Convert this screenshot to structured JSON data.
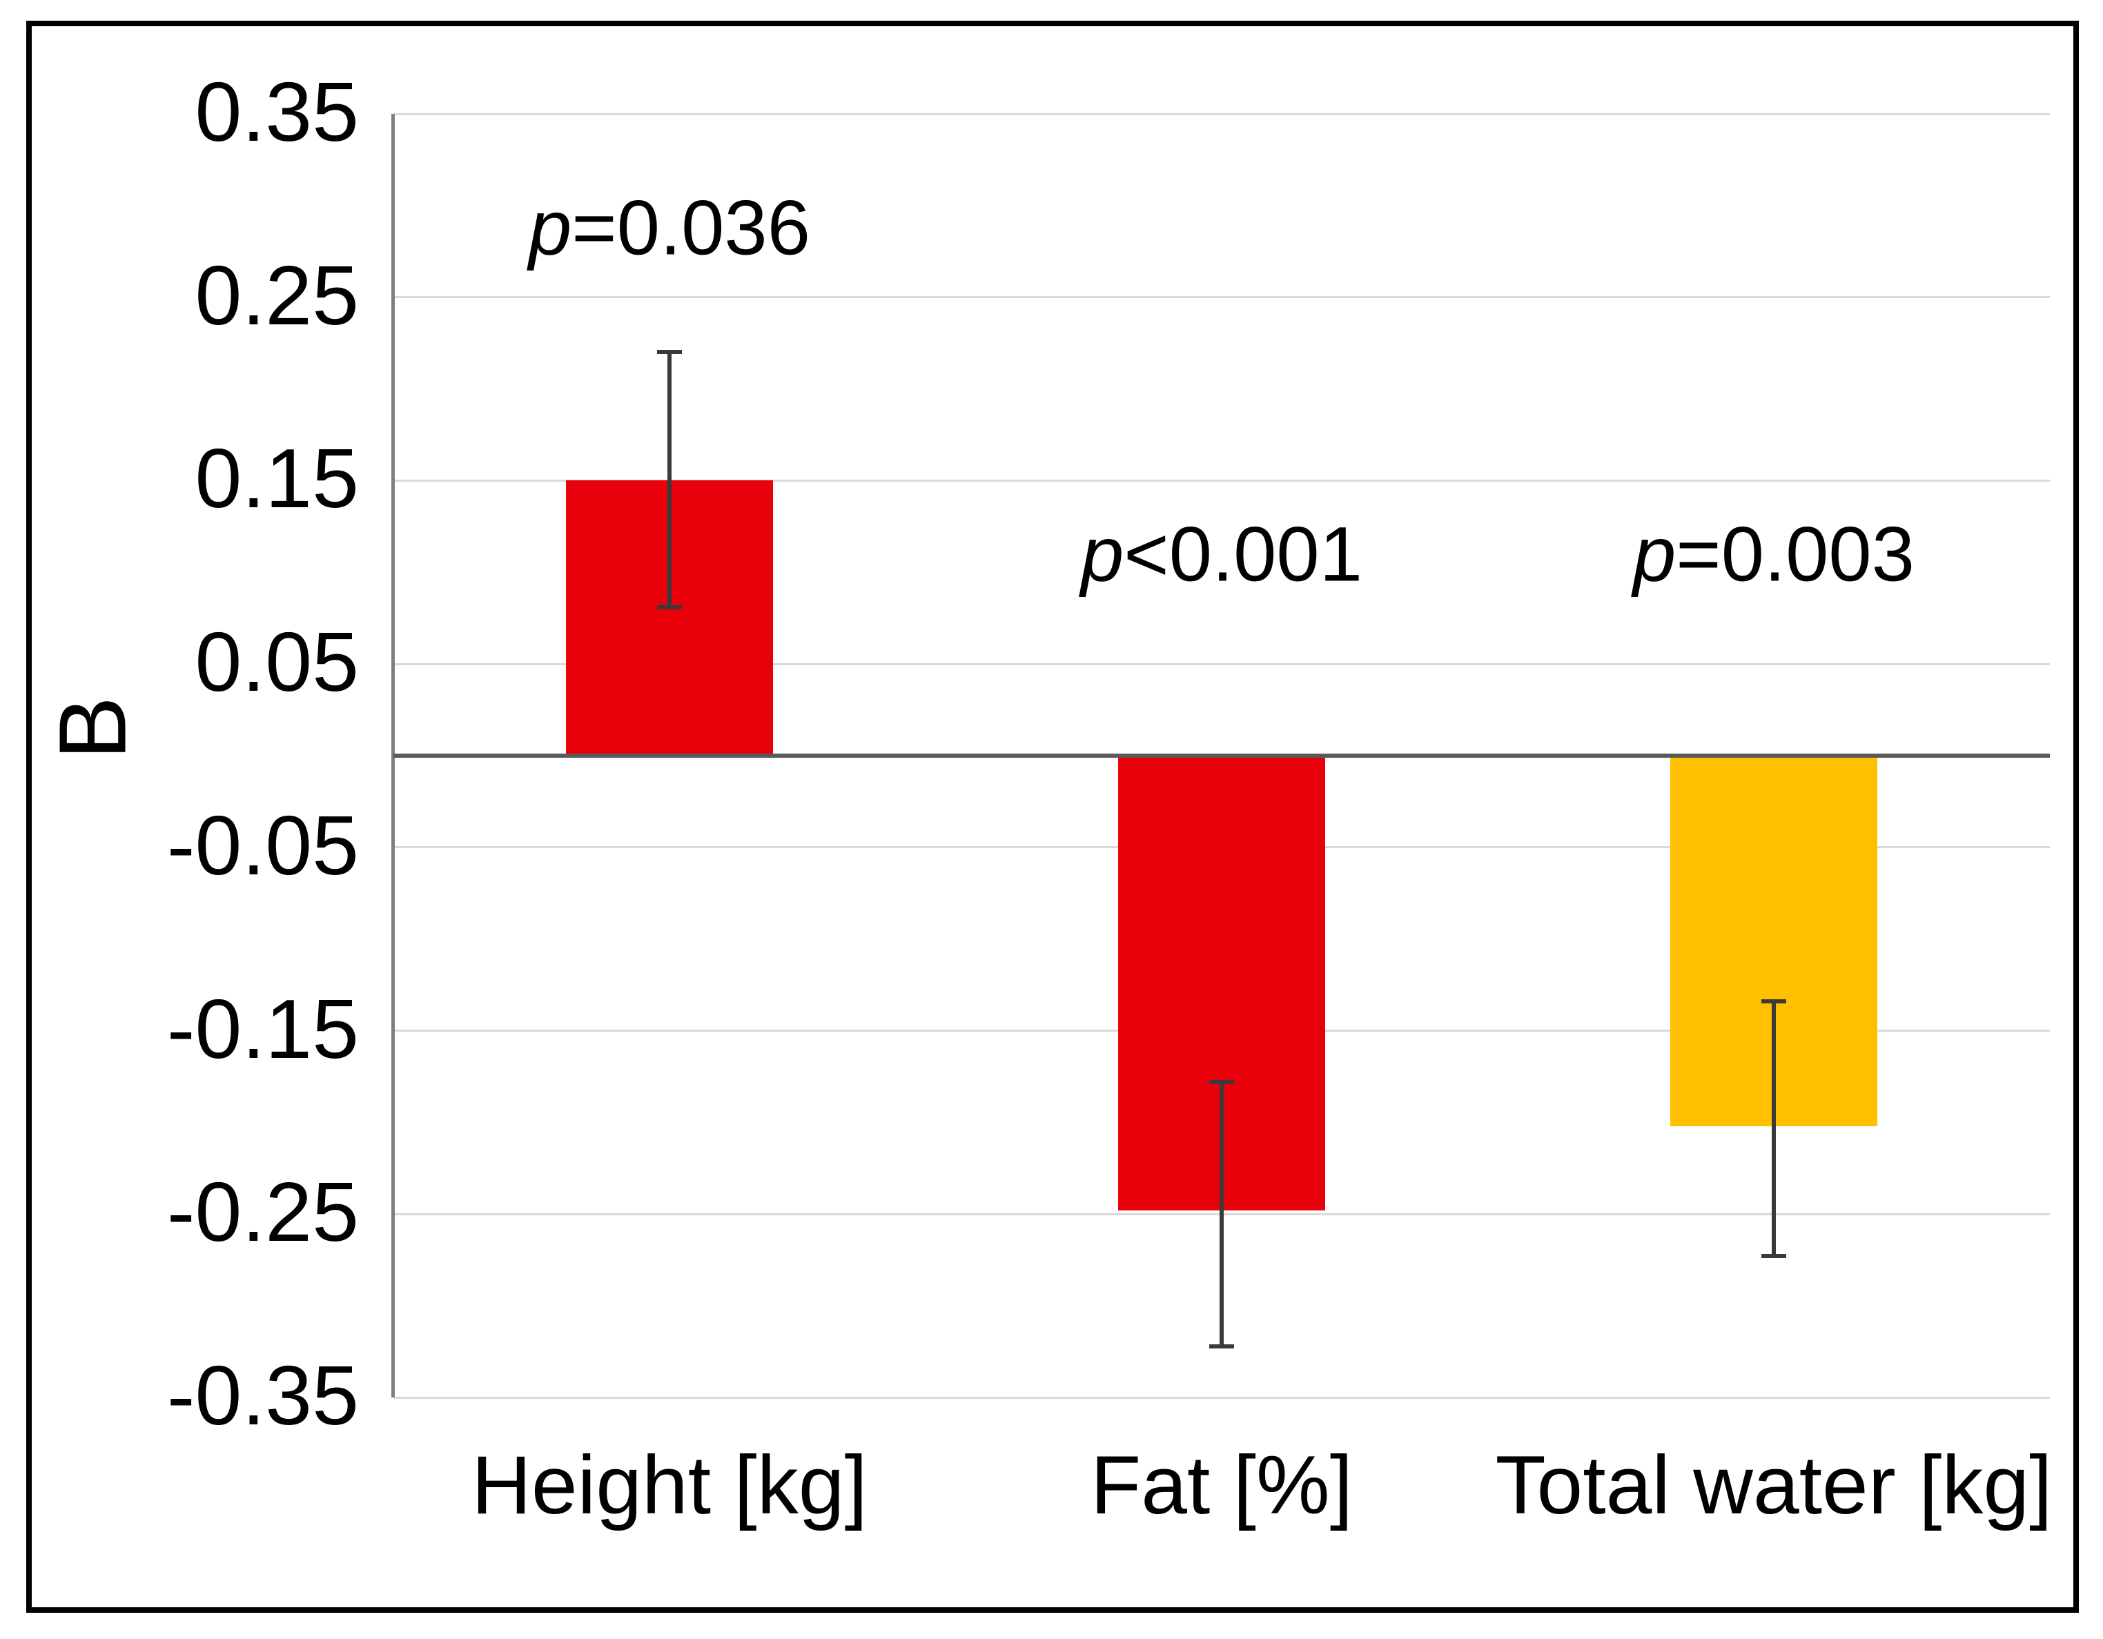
{
  "chart_data": {
    "type": "bar",
    "title": "",
    "xlabel": "",
    "ylabel": "B",
    "ylim": [
      -0.35,
      0.35
    ],
    "ytick_labels": [
      "0.35",
      "0.25",
      "0.15",
      "0.05",
      "-0.05",
      "-0.15",
      "-0.25",
      "-0.35"
    ],
    "grid": "horizontal light gridlines at each y tick; darker horizontal line at 0",
    "legend": "none",
    "categories": [
      "Height [kg]",
      "Fat [%]",
      "Total water [kg]"
    ],
    "series": [
      {
        "name": "B",
        "values": [
          0.15,
          -0.248,
          -0.202
        ],
        "error_bar_high": [
          0.22,
          -0.178,
          -0.134
        ],
        "error_bar_low": [
          0.081,
          -0.322,
          -0.273
        ],
        "bar_colors": [
          "#e8000b",
          "#e8000b",
          "#ffc000"
        ]
      }
    ],
    "annotations": [
      {
        "text": "p=0.036",
        "category_index": 0,
        "y": 0.288
      },
      {
        "text": "p<0.001",
        "category_index": 1,
        "y": 0.11
      },
      {
        "text": "p=0.003",
        "category_index": 2,
        "y": 0.11
      }
    ],
    "colors": {
      "bar_red": "#e8000b",
      "bar_gold": "#ffc000",
      "gridline": "#d9d9d9",
      "zero_line": "#595959",
      "axis_line": "#7f7f7f",
      "error_bar": "#3a3a3a",
      "text": "#000000",
      "figure_border": "#000000",
      "background": "#ffffff"
    }
  }
}
